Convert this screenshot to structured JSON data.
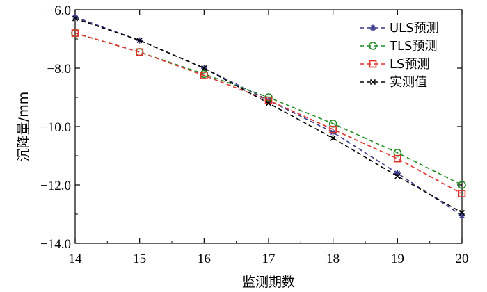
{
  "chart_data": {
    "type": "line",
    "xlabel": "监测期数",
    "ylabel": "沉降量/mm",
    "x": [
      14,
      15,
      16,
      17,
      18,
      19,
      20
    ],
    "xlim": [
      14,
      20
    ],
    "ylim": [
      -14.0,
      -6.0
    ],
    "x_tick_labels": [
      "14",
      "15",
      "16",
      "17",
      "18",
      "19",
      "20"
    ],
    "y_ticks": [
      -6.0,
      -8.0,
      -10.0,
      -12.0,
      -14.0
    ],
    "y_tick_labels": [
      "−6.0",
      "−8.0",
      "−10.0",
      "−12.0",
      "−14.0"
    ],
    "grid": false,
    "legend_position": "top-right",
    "series": [
      {
        "name": "ULS预测",
        "color": "#3a3a8c",
        "marker": "star",
        "values": [
          -6.25,
          -7.05,
          -8.0,
          -9.1,
          -10.2,
          -11.6,
          -13.05
        ]
      },
      {
        "name": "TLS预测",
        "color": "#1e8c1e",
        "marker": "circle",
        "values": [
          -6.8,
          -7.45,
          -8.2,
          -9.0,
          -9.9,
          -10.9,
          -12.0
        ]
      },
      {
        "name": "LS预测",
        "color": "#e0302a",
        "marker": "square",
        "values": [
          -6.8,
          -7.45,
          -8.25,
          -9.1,
          -10.1,
          -11.1,
          -12.3
        ]
      },
      {
        "name": "实测值",
        "color": "#000000",
        "marker": "x",
        "values": [
          -6.3,
          -7.05,
          -8.0,
          -9.2,
          -10.4,
          -11.7,
          -12.95
        ]
      }
    ]
  }
}
